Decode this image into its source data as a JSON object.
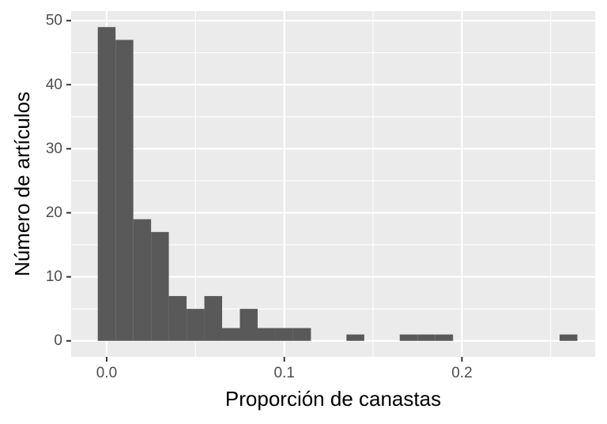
{
  "chart_data": {
    "type": "bar",
    "subtype": "histogram",
    "title": "",
    "xlabel": "Proporción de canastas",
    "ylabel": "Número de artículos",
    "xlim": [
      -0.02,
      0.275
    ],
    "ylim": [
      -2.5,
      51.5
    ],
    "x_ticks": [
      {
        "value": 0.0,
        "label": "0.0"
      },
      {
        "value": 0.1,
        "label": "0.1"
      },
      {
        "value": 0.2,
        "label": "0.2"
      }
    ],
    "y_ticks": [
      {
        "value": 0,
        "label": "0"
      },
      {
        "value": 10,
        "label": "10"
      },
      {
        "value": 20,
        "label": "20"
      },
      {
        "value": 30,
        "label": "30"
      },
      {
        "value": 40,
        "label": "40"
      },
      {
        "value": 50,
        "label": "50"
      }
    ],
    "grid": true,
    "background_color": "#ebebeb",
    "bar_color": "#595959",
    "grid_color": "#ffffff",
    "bins": [
      {
        "x0": -0.005,
        "x1": 0.005,
        "count": 49
      },
      {
        "x0": 0.005,
        "x1": 0.015,
        "count": 47
      },
      {
        "x0": 0.015,
        "x1": 0.025,
        "count": 19
      },
      {
        "x0": 0.025,
        "x1": 0.035,
        "count": 17
      },
      {
        "x0": 0.035,
        "x1": 0.045,
        "count": 7
      },
      {
        "x0": 0.045,
        "x1": 0.055,
        "count": 5
      },
      {
        "x0": 0.055,
        "x1": 0.065,
        "count": 7
      },
      {
        "x0": 0.065,
        "x1": 0.075,
        "count": 2
      },
      {
        "x0": 0.075,
        "x1": 0.085,
        "count": 5
      },
      {
        "x0": 0.085,
        "x1": 0.095,
        "count": 2
      },
      {
        "x0": 0.095,
        "x1": 0.105,
        "count": 2
      },
      {
        "x0": 0.105,
        "x1": 0.115,
        "count": 2
      },
      {
        "x0": 0.135,
        "x1": 0.145,
        "count": 1
      },
      {
        "x0": 0.165,
        "x1": 0.175,
        "count": 1
      },
      {
        "x0": 0.175,
        "x1": 0.185,
        "count": 1
      },
      {
        "x0": 0.185,
        "x1": 0.195,
        "count": 1
      },
      {
        "x0": 0.255,
        "x1": 0.265,
        "count": 1
      }
    ]
  }
}
